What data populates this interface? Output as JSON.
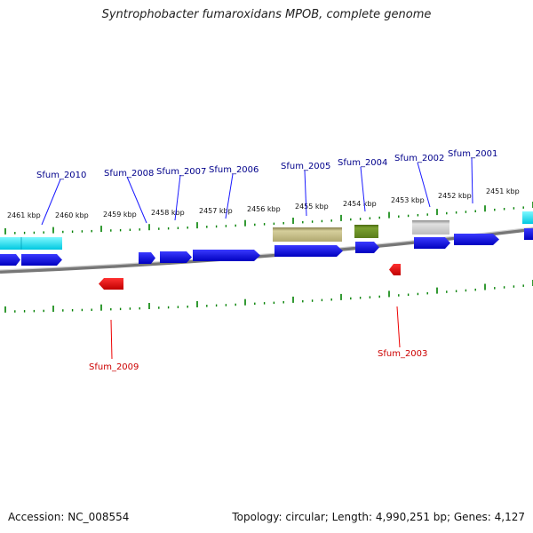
{
  "title": "Syntrophobacter fumaroxidans MPOB, complete genome",
  "footer": {
    "accession": "Accession: NC_008554",
    "topology": "Topology: circular; Length: 4,990,251 bp; Genes: 4,127"
  },
  "ruler_labels": [
    "2461 kbp",
    "2460 kbp",
    "2459 kbp",
    "2458 kbp",
    "2457 kbp",
    "2456 kbp",
    "2455 kbp",
    "2454 kbp",
    "2453 kbp",
    "2452 kbp",
    "2451 kbp"
  ],
  "gene_labels_top": [
    "Sfum_2010",
    "Sfum_2008",
    "Sfum_2007",
    "Sfum_2006",
    "Sfum_2005",
    "Sfum_2004",
    "Sfum_2002",
    "Sfum_2001"
  ],
  "gene_labels_bottom": [
    "Sfum_2009",
    "Sfum_2003"
  ],
  "colors": {
    "forward_strand": "#0000ee",
    "reverse_strand": "#ee0000",
    "label_top": "#00008b",
    "label_bottom": "#cc0000",
    "tick": "#008000",
    "backbone": "#888888",
    "cyan_feature": "#00e0f0",
    "olive_feature": "#c0b880",
    "green_feature": "#6b8e23",
    "gray_feature": "#c8c8c8"
  }
}
